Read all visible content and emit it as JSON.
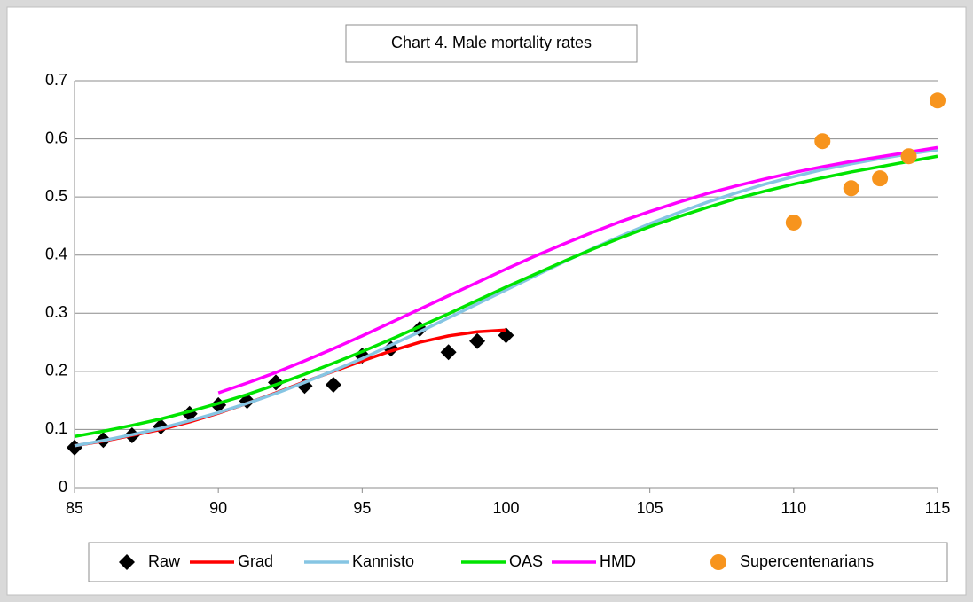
{
  "chart_data": {
    "type": "line",
    "title": "Chart 4. Male mortality rates",
    "x": [
      85,
      86,
      87,
      88,
      89,
      90,
      91,
      92,
      93,
      94,
      95,
      96,
      97,
      98,
      99,
      100,
      101,
      102,
      103,
      104,
      105,
      106,
      107,
      108,
      109,
      110,
      111,
      112,
      113,
      114,
      115
    ],
    "xlim": [
      85,
      115
    ],
    "xticks": [
      85,
      90,
      95,
      100,
      105,
      110,
      115
    ],
    "ylim": [
      0,
      0.7
    ],
    "yticks": [
      0,
      0.1,
      0.2,
      0.3,
      0.4,
      0.5,
      0.6,
      0.7
    ],
    "grid": true,
    "legend": "bottom",
    "series": [
      {
        "name": "Raw",
        "color": "#000000",
        "marker": "diamond",
        "values": [
          0.069,
          0.082,
          0.09,
          0.105,
          0.127,
          0.142,
          0.149,
          0.181,
          0.175,
          0.177,
          0.227,
          0.239,
          0.273,
          0.233,
          0.252,
          0.262,
          null,
          null,
          null,
          null,
          null,
          null,
          null,
          null,
          null,
          null,
          null,
          null,
          null,
          null,
          null
        ]
      },
      {
        "name": "Grad",
        "color": "#ff0000",
        "marker": "none",
        "values": [
          0.072,
          0.08,
          0.09,
          0.1,
          0.113,
          0.128,
          0.145,
          0.163,
          0.182,
          0.2,
          0.218,
          0.235,
          0.25,
          0.261,
          0.268,
          0.271,
          null,
          null,
          null,
          null,
          null,
          null,
          null,
          null,
          null,
          null,
          null,
          null,
          null,
          null,
          null
        ]
      },
      {
        "name": "Kannisto",
        "color": "#86c5e3",
        "marker": "none",
        "values": [
          0.072,
          0.081,
          0.091,
          0.102,
          0.115,
          0.129,
          0.145,
          0.162,
          0.181,
          0.201,
          0.222,
          0.245,
          0.268,
          0.292,
          0.316,
          0.34,
          0.364,
          0.388,
          0.411,
          0.433,
          0.454,
          0.473,
          0.491,
          0.507,
          0.522,
          0.535,
          0.547,
          0.557,
          0.566,
          0.574,
          0.581
        ]
      },
      {
        "name": "OAS",
        "color": "#00e400",
        "marker": "none",
        "values": [
          0.088,
          0.097,
          0.107,
          0.118,
          0.131,
          0.145,
          0.16,
          0.177,
          0.195,
          0.214,
          0.234,
          0.255,
          0.277,
          0.299,
          0.322,
          0.345,
          0.367,
          0.389,
          0.41,
          0.43,
          0.449,
          0.466,
          0.482,
          0.497,
          0.51,
          0.522,
          0.533,
          0.543,
          0.552,
          0.561,
          0.57
        ]
      },
      {
        "name": "HMD",
        "color": "#ff00ff",
        "marker": "none",
        "values": [
          null,
          null,
          null,
          null,
          null,
          0.163,
          0.18,
          0.198,
          0.218,
          0.239,
          0.261,
          0.284,
          0.307,
          0.33,
          0.353,
          0.376,
          0.398,
          0.419,
          0.439,
          0.458,
          0.475,
          0.491,
          0.506,
          0.519,
          0.531,
          0.542,
          0.552,
          0.561,
          0.569,
          0.577,
          0.585
        ]
      },
      {
        "name": "Supercentenarians",
        "color": "#f7941d",
        "marker": "circle",
        "values": [
          null,
          null,
          null,
          null,
          null,
          null,
          null,
          null,
          null,
          null,
          null,
          null,
          null,
          null,
          null,
          null,
          null,
          null,
          null,
          null,
          null,
          null,
          null,
          null,
          null,
          0.456,
          0.596,
          0.515,
          0.532,
          0.57,
          0.666
        ]
      }
    ]
  }
}
